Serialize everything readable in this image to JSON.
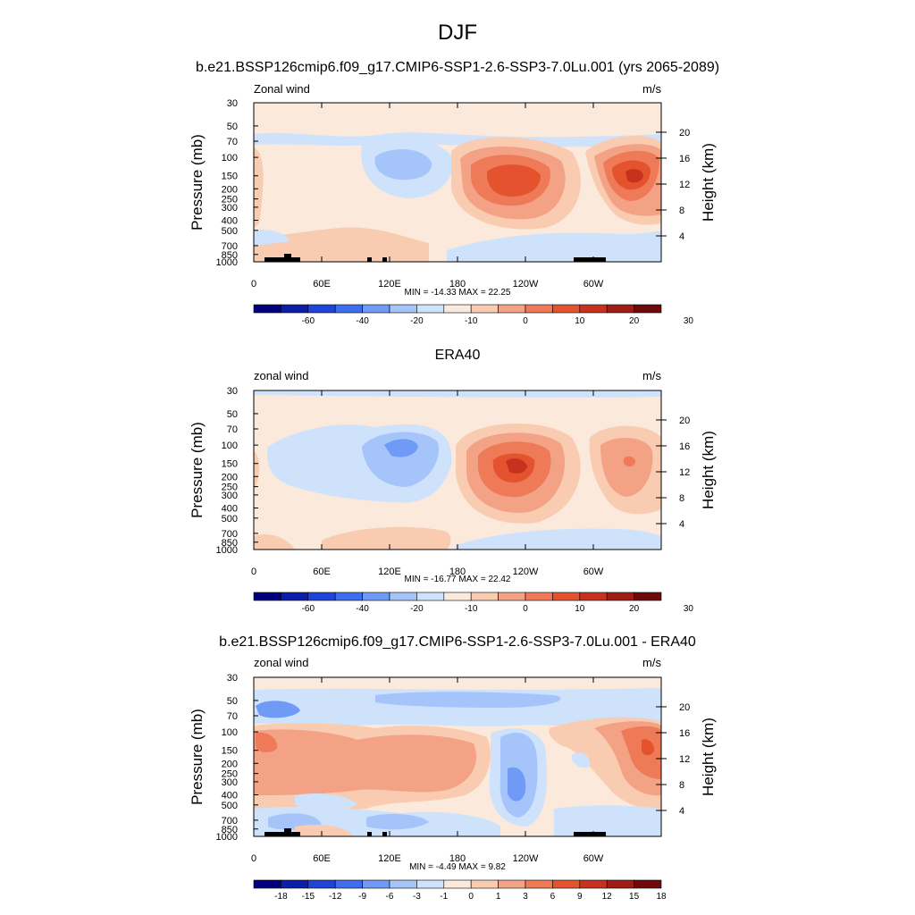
{
  "figure": {
    "title": "DJF"
  },
  "panels": [
    {
      "title": "b.e21.BSSP126cmip6.f09_g17.CMIP6-SSP1-2.6-SSP3-7.0Lu.001 (yrs 2065-2089)",
      "left_label": "Zonal wind",
      "right_label": "m/s",
      "y_label_left": "Pressure (mb)",
      "y_label_right": "Height (km)",
      "stats": "MIN = -14.33  MAX =  22.25",
      "colorbar_labels": [
        "-60",
        "-40",
        "-20",
        "-10",
        "0",
        "10",
        "20",
        "30"
      ],
      "colorbar_colors": [
        "#00007f",
        "#0b1fa8",
        "#1f45d8",
        "#3d6ef0",
        "#6f9af6",
        "#a4c4fa",
        "#cfe2fb",
        "#fbe9dc",
        "#f9cbb0",
        "#f4a285",
        "#ee7a57",
        "#e4522e",
        "#c7321e",
        "#a01d16",
        "#6e0a0a"
      ]
    },
    {
      "title": "ERA40",
      "left_label": "zonal wind",
      "right_label": "m/s",
      "y_label_left": "Pressure (mb)",
      "y_label_right": "Height (km)",
      "stats": "MIN = -16.77  MAX =  22.42",
      "colorbar_labels": [
        "-60",
        "-40",
        "-20",
        "-10",
        "0",
        "10",
        "20",
        "30"
      ],
      "colorbar_colors": [
        "#00007f",
        "#0b1fa8",
        "#1f45d8",
        "#3d6ef0",
        "#6f9af6",
        "#a4c4fa",
        "#cfe2fb",
        "#fbe9dc",
        "#f9cbb0",
        "#f4a285",
        "#ee7a57",
        "#e4522e",
        "#c7321e",
        "#a01d16",
        "#6e0a0a"
      ]
    },
    {
      "title": "b.e21.BSSP126cmip6.f09_g17.CMIP6-SSP1-2.6-SSP3-7.0Lu.001 - ERA40",
      "left_label": "zonal wind",
      "right_label": "m/s",
      "y_label_left": "Pressure (mb)",
      "y_label_right": "Height (km)",
      "stats": "MIN =  -4.49  MAX =   9.82",
      "colorbar_labels": [
        "-18",
        "-15",
        "-12",
        "-9",
        "-6",
        "-3",
        "-1",
        "0",
        "1",
        "3",
        "6",
        "9",
        "12",
        "15",
        "18"
      ],
      "colorbar_colors": [
        "#00007f",
        "#0b1fa8",
        "#1f45d8",
        "#3d6ef0",
        "#6f9af6",
        "#a4c4fa",
        "#cfe2fb",
        "#fbe9dc",
        "#f9cbb0",
        "#f4a285",
        "#ee7a57",
        "#e4522e",
        "#c7321e",
        "#a01d16",
        "#6e0a0a"
      ]
    }
  ],
  "chart_data": {
    "type": "heatmap",
    "x_tick_labels": [
      "0",
      "60E",
      "120E",
      "180",
      "120W",
      "60W"
    ],
    "x_ticks_deg_east": [
      0,
      60,
      120,
      180,
      240,
      300
    ],
    "xlim_deg_east": [
      0,
      360
    ],
    "y_tick_labels": [
      "30",
      "50",
      "70",
      "100",
      "150",
      "200",
      "250",
      "300",
      "400",
      "500",
      "700",
      "850",
      "1000"
    ],
    "y_ticks_mb": [
      30,
      50,
      70,
      100,
      150,
      200,
      250,
      300,
      400,
      500,
      700,
      850,
      1000
    ],
    "ylim_mb": [
      1000,
      30
    ],
    "y_scale": "log",
    "height_tick_labels": [
      "4",
      "8",
      "12",
      "16",
      "20"
    ],
    "height_ticks_km": [
      4,
      8,
      12,
      16,
      20
    ],
    "panels": [
      {
        "name": "Zonal wind",
        "units": "m/s",
        "min": -14.33,
        "max": 22.25,
        "features": [
          {
            "lon": 130,
            "mb": 130,
            "value": -10
          },
          {
            "lon": 230,
            "mb": 150,
            "value": 20
          },
          {
            "lon": 335,
            "mb": 150,
            "value": 22
          },
          {
            "lon": 200,
            "mb": 900,
            "value": -10
          },
          {
            "lon": 20,
            "mb": 70,
            "value": -5
          }
        ]
      },
      {
        "name": "zonal wind",
        "units": "m/s",
        "min": -16.77,
        "max": 22.42,
        "features": [
          {
            "lon": 120,
            "mb": 130,
            "value": -16
          },
          {
            "lon": 235,
            "mb": 150,
            "value": 22
          },
          {
            "lon": 330,
            "mb": 150,
            "value": 18
          },
          {
            "lon": 300,
            "mb": 800,
            "value": -5
          }
        ]
      },
      {
        "name": "zonal wind",
        "units": "m/s",
        "min": -4.49,
        "max": 9.82,
        "features": [
          {
            "lon": 30,
            "mb": 60,
            "value": -4
          },
          {
            "lon": 20,
            "mb": 150,
            "value": 6
          },
          {
            "lon": 140,
            "mb": 150,
            "value": 5
          },
          {
            "lon": 230,
            "mb": 300,
            "value": -4
          },
          {
            "lon": 350,
            "mb": 150,
            "value": 9
          },
          {
            "lon": 80,
            "mb": 500,
            "value": -3
          }
        ]
      }
    ]
  }
}
